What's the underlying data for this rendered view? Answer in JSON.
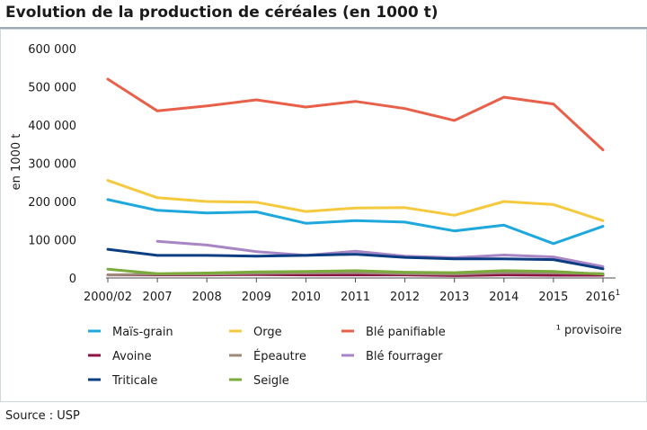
{
  "title": "Evolution de la production de céréales (en 1000 t)",
  "source": "Source : USP",
  "footnote": "¹ provisoire",
  "chart_data": {
    "type": "line",
    "title": "Evolution de la production de céréales (en 1000 t)",
    "xlabel": "",
    "ylabel": "en 1000 t",
    "ylim": [
      0,
      600000
    ],
    "yticks": [
      "600 000",
      "500 000",
      "400 000",
      "300 000",
      "200 000",
      "100 000",
      "0"
    ],
    "yticks_values": [
      600000,
      500000,
      400000,
      300000,
      200000,
      100000,
      0
    ],
    "categories": [
      "2000/02",
      "2007",
      "2008",
      "2009",
      "2010",
      "2011",
      "2012",
      "2013",
      "2014",
      "2015",
      "2016"
    ],
    "last_category_superscript": "1",
    "grid": false,
    "legend_position": "bottom",
    "series": [
      {
        "name": "Maïs-grain",
        "color": "#1ea8dc",
        "values": [
          205000,
          177000,
          170000,
          173000,
          143000,
          150000,
          146000,
          123000,
          138000,
          90000,
          135000
        ]
      },
      {
        "name": "Orge",
        "color": "#f5c93e",
        "values": [
          255000,
          210000,
          200000,
          198000,
          174000,
          183000,
          184000,
          164000,
          200000,
          192000,
          150000
        ]
      },
      {
        "name": "Blé panifiable",
        "color": "#e8604a",
        "values": [
          520000,
          437000,
          450000,
          466000,
          447000,
          462000,
          443000,
          412000,
          473000,
          455000,
          335000
        ]
      },
      {
        "name": "Avoine",
        "color": "#8c1245",
        "values": [
          8000,
          8000,
          8000,
          9000,
          8000,
          8000,
          8000,
          6000,
          8000,
          7000,
          7000
        ]
      },
      {
        "name": "Épeautre",
        "color": "#9d8a7c",
        "values": [
          8000,
          10000,
          10000,
          12000,
          13000,
          14000,
          11000,
          10000,
          14000,
          13000,
          11000
        ]
      },
      {
        "name": "Blé fourrager",
        "color": "#a885c4",
        "values": [
          null,
          96000,
          86000,
          69000,
          59000,
          70000,
          57000,
          53000,
          60000,
          55000,
          30000
        ]
      },
      {
        "name": "Triticale",
        "color": "#0b3d82",
        "values": [
          75000,
          59000,
          59000,
          57000,
          59000,
          62000,
          54000,
          50000,
          50000,
          48000,
          24000
        ]
      },
      {
        "name": "Seigle",
        "color": "#7bab3b",
        "values": [
          23000,
          11000,
          13000,
          16000,
          17000,
          19000,
          15000,
          14000,
          19000,
          17000,
          10000
        ]
      }
    ]
  }
}
